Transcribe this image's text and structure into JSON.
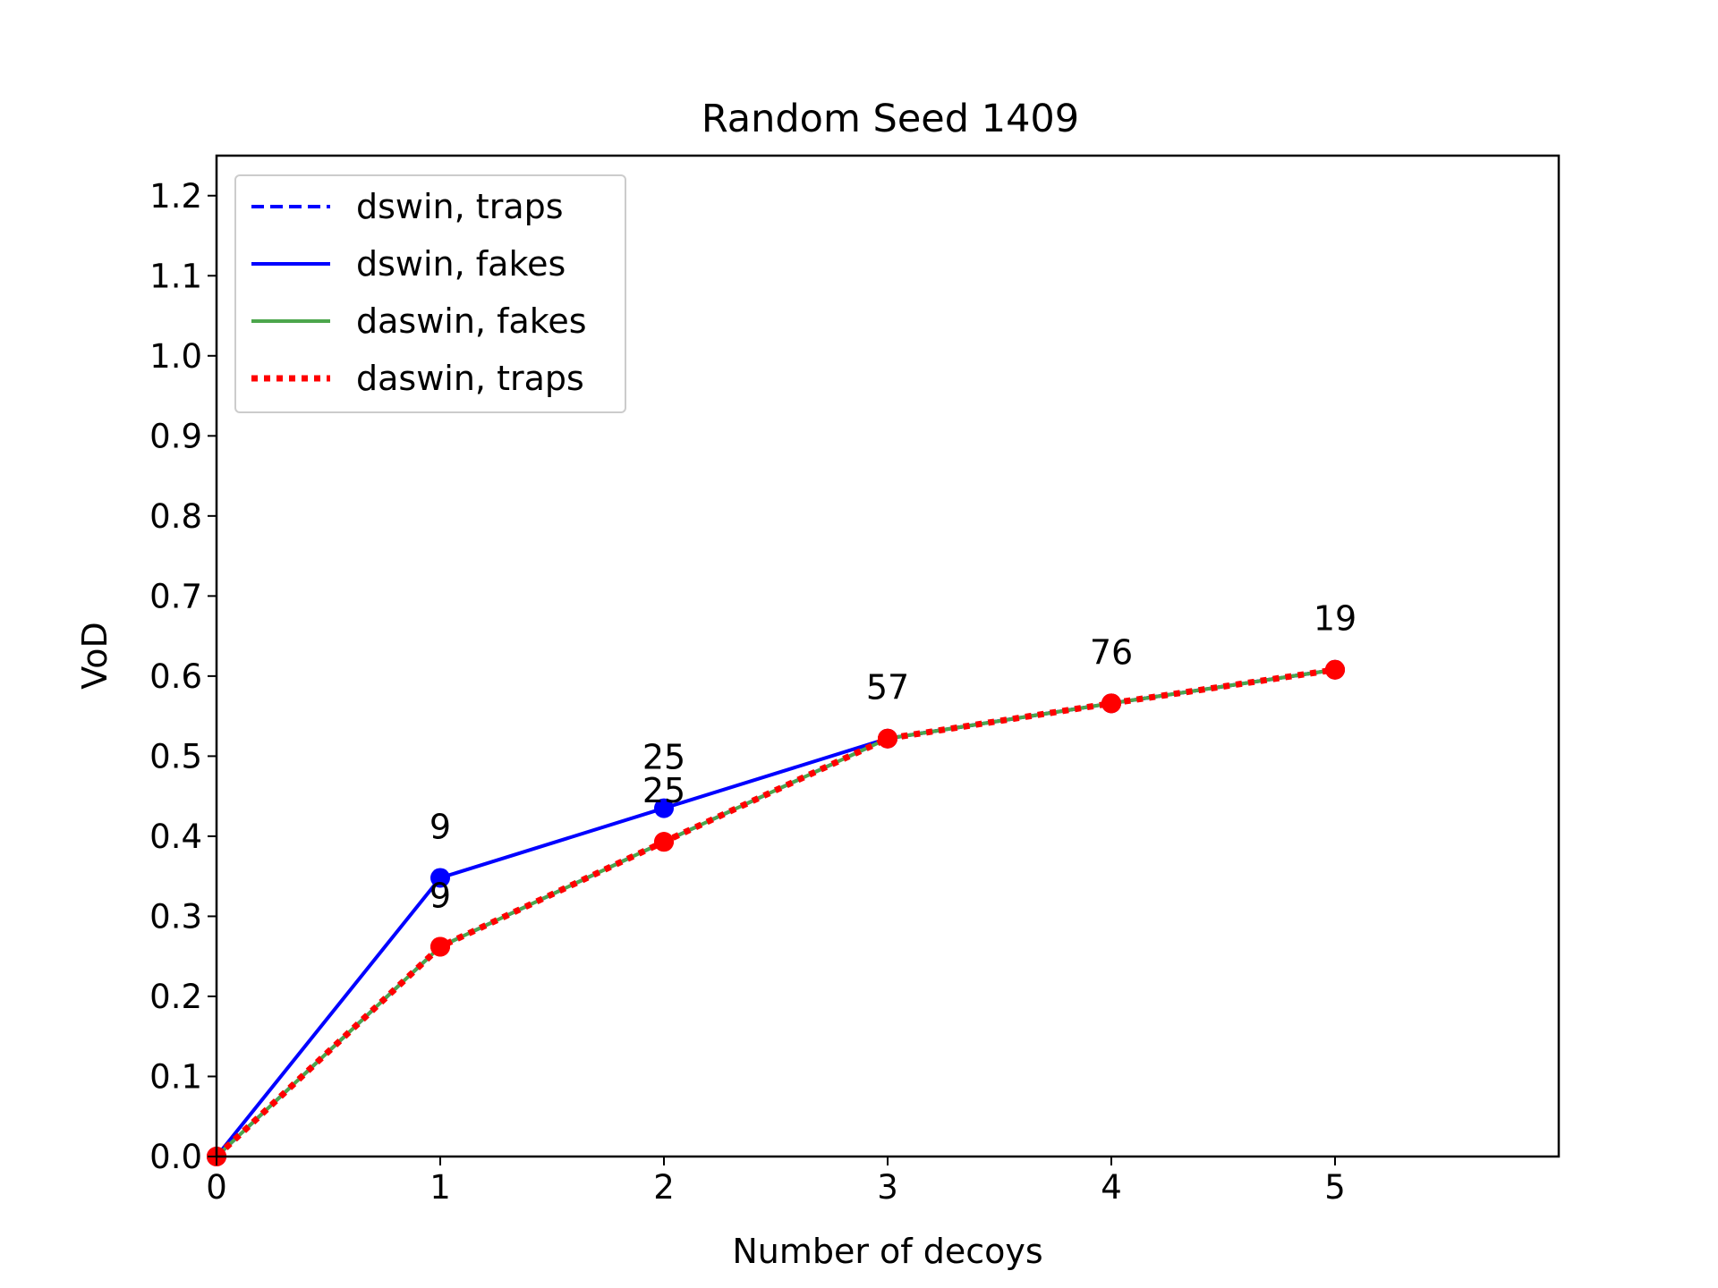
{
  "chart_data": {
    "type": "line",
    "title": "Random Seed 1409",
    "xlabel": "Number of decoys",
    "ylabel": "VoD",
    "xlim": [
      0,
      6
    ],
    "ylim": [
      0,
      1.25
    ],
    "x_ticks": [
      "0",
      "1",
      "2",
      "3",
      "4",
      "5"
    ],
    "y_ticks": [
      "0.0",
      "0.1",
      "0.2",
      "0.3",
      "0.4",
      "0.5",
      "0.6",
      "0.7",
      "0.8",
      "0.9",
      "1.0",
      "1.1",
      "1.2"
    ],
    "grid": false,
    "legend_position": "upper-left",
    "x": [
      0,
      1,
      2,
      3,
      4,
      5
    ],
    "series": [
      {
        "name": "dswin, traps",
        "style": "dashed",
        "color": "#0000ff",
        "values": [
          0.0,
          0.262,
          0.393,
          0.522,
          0.566,
          0.608
        ]
      },
      {
        "name": "dswin, fakes",
        "style": "solid",
        "color": "#0000ff",
        "values": [
          0.0,
          0.348,
          0.435,
          0.522,
          0.566,
          0.608
        ]
      },
      {
        "name": "daswin, fakes",
        "style": "solid",
        "color": "#4ca64c",
        "values": [
          0.0,
          0.262,
          0.393,
          0.522,
          0.566,
          0.608
        ]
      },
      {
        "name": "daswin, traps",
        "style": "dotted",
        "color": "#ff0000",
        "values": [
          0.0,
          0.262,
          0.393,
          0.522,
          0.566,
          0.608
        ]
      }
    ],
    "annotations": [
      {
        "text": "9",
        "x": 1,
        "y": 0.348
      },
      {
        "text": "9",
        "x": 1,
        "y": 0.262
      },
      {
        "text": "25",
        "x": 2,
        "y": 0.435
      },
      {
        "text": "25",
        "x": 2,
        "y": 0.393
      },
      {
        "text": "57",
        "x": 3,
        "y": 0.522
      },
      {
        "text": "76",
        "x": 4,
        "y": 0.566
      },
      {
        "text": "19",
        "x": 5,
        "y": 0.608
      }
    ]
  }
}
